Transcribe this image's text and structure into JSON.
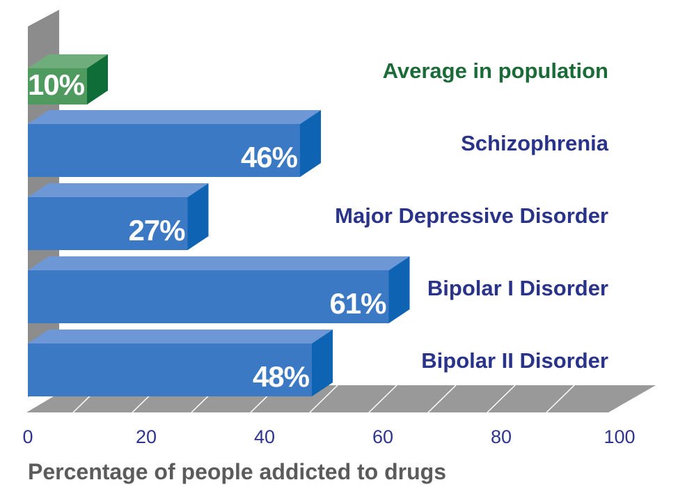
{
  "chart_data": {
    "type": "bar",
    "orientation": "horizontal",
    "style": "3d",
    "categories": [
      "Average in population",
      "Schizophrenia",
      "Major Depressive Disorder",
      "Bipolar I Disorder",
      "Bipolar II Disorder"
    ],
    "values": [
      10,
      46,
      27,
      61,
      48
    ],
    "value_labels": [
      "10%",
      "46%",
      "27%",
      "61%",
      "48%"
    ],
    "xlabel": "Percentage of people addicted to drugs",
    "ylabel": "",
    "title": "",
    "xlim": [
      0,
      100
    ],
    "xticks": [
      "0",
      "20",
      "40",
      "60",
      "80",
      "100"
    ],
    "grid": false,
    "legend": "none"
  },
  "colors": {
    "highlight_bar": "#4f9a5f",
    "highlight_bar_top": "#6fae7c",
    "highlight_bar_side": "#0f6e37",
    "highlight_text": "#1a6b37",
    "bar": "#3c79c4",
    "bar_top": "#6e97d6",
    "bar_side": "#0f63b3",
    "label_text": "#2a338a",
    "tick_text": "#2e3591",
    "axis_title": "#5b5b5b",
    "wall": "#8c8c8c",
    "floor": "#999999",
    "floor_lines": "#ffffff"
  }
}
